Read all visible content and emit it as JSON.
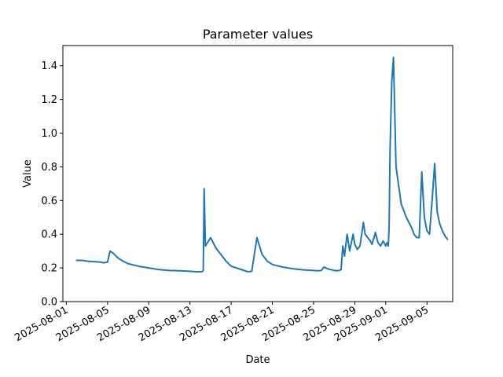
{
  "chart_data": {
    "type": "line",
    "title": "Parameter values",
    "xlabel": "Date",
    "ylabel": "Value",
    "x_ticks": [
      "2025-08-01",
      "2025-08-05",
      "2025-08-09",
      "2025-08-13",
      "2025-08-17",
      "2025-08-21",
      "2025-08-25",
      "2025-08-29",
      "2025-09-01",
      "2025-09-05"
    ],
    "y_ticks": [
      "0.0",
      "0.2",
      "0.4",
      "0.6",
      "0.8",
      "1.0",
      "1.2",
      "1.4"
    ],
    "xlim": [
      "2025-07-31T16:00",
      "2025-09-07T12:00"
    ],
    "ylim": [
      0.0,
      1.52
    ],
    "grid": false,
    "color": "#1f77b4",
    "series": [
      {
        "x": [
          "2025-08-02T00:00",
          "2025-08-02T12:00",
          "2025-08-03T00:00",
          "2025-08-03T12:00",
          "2025-08-04T00:00",
          "2025-08-04T06:00",
          "2025-08-04T12:00",
          "2025-08-04T16:00",
          "2025-08-04T20:00",
          "2025-08-05T00:00",
          "2025-08-05T06:00",
          "2025-08-05T12:00",
          "2025-08-06T00:00",
          "2025-08-06T12:00",
          "2025-08-07T00:00",
          "2025-08-08T00:00",
          "2025-08-09T00:00",
          "2025-08-10T00:00",
          "2025-08-11T00:00",
          "2025-08-12T00:00",
          "2025-08-13T00:00",
          "2025-08-13T12:00",
          "2025-08-14T00:00",
          "2025-08-14T03:00",
          "2025-08-14T04:00",
          "2025-08-14T06:00",
          "2025-08-14T07:00",
          "2025-08-14T09:00",
          "2025-08-14T12:00",
          "2025-08-15T00:00",
          "2025-08-15T12:00",
          "2025-08-16T00:00",
          "2025-08-16T12:00",
          "2025-08-17T00:00",
          "2025-08-17T12:00",
          "2025-08-18T00:00",
          "2025-08-18T12:00",
          "2025-08-18T15:00",
          "2025-08-18T18:00",
          "2025-08-19T00:00",
          "2025-08-19T12:00",
          "2025-08-20T00:00",
          "2025-08-20T12:00",
          "2025-08-21T00:00",
          "2025-08-22T00:00",
          "2025-08-23T00:00",
          "2025-08-24T00:00",
          "2025-08-25T00:00",
          "2025-08-25T12:00",
          "2025-08-25T18:00",
          "2025-08-26T00:00",
          "2025-08-26T12:00",
          "2025-08-27T00:00",
          "2025-08-27T06:00",
          "2025-08-27T12:00",
          "2025-08-27T16:00",
          "2025-08-27T20:00",
          "2025-08-28T00:00",
          "2025-08-28T06:00",
          "2025-08-28T12:00",
          "2025-08-28T20:00",
          "2025-08-29T00:00",
          "2025-08-29T06:00",
          "2025-08-29T12:00",
          "2025-08-29T20:00",
          "2025-08-30T00:00",
          "2025-08-30T12:00",
          "2025-08-30T16:00",
          "2025-08-31T00:00",
          "2025-08-31T06:00",
          "2025-08-31T12:00",
          "2025-08-31T18:00",
          "2025-09-01T00:00",
          "2025-09-01T03:00",
          "2025-09-01T06:00",
          "2025-09-01T08:00",
          "2025-09-01T10:00",
          "2025-09-01T14:00",
          "2025-09-01T18:00",
          "2025-09-02T00:00",
          "2025-09-02T12:00",
          "2025-09-03T00:00",
          "2025-09-03T12:00",
          "2025-09-03T18:00",
          "2025-09-04T00:00",
          "2025-09-04T06:00",
          "2025-09-04T12:00",
          "2025-09-04T18:00",
          "2025-09-05T00:00",
          "2025-09-05T06:00",
          "2025-09-05T12:00",
          "2025-09-05T18:00",
          "2025-09-06T00:00",
          "2025-09-06T06:00",
          "2025-09-06T12:00",
          "2025-09-06T18:00",
          "2025-09-07T00:00"
        ],
        "y": [
          0.245,
          0.245,
          0.24,
          0.238,
          0.236,
          0.235,
          0.232,
          0.23,
          0.233,
          0.235,
          0.3,
          0.29,
          0.26,
          0.24,
          0.225,
          0.21,
          0.2,
          0.19,
          0.185,
          0.183,
          0.18,
          0.178,
          0.177,
          0.178,
          0.178,
          0.18,
          0.19,
          0.67,
          0.33,
          0.38,
          0.32,
          0.28,
          0.24,
          0.21,
          0.2,
          0.19,
          0.18,
          0.178,
          0.178,
          0.18,
          0.38,
          0.28,
          0.24,
          0.22,
          0.205,
          0.195,
          0.188,
          0.185,
          0.183,
          0.185,
          0.205,
          0.192,
          0.185,
          0.183,
          0.185,
          0.19,
          0.33,
          0.27,
          0.4,
          0.3,
          0.4,
          0.34,
          0.31,
          0.33,
          0.47,
          0.4,
          0.36,
          0.34,
          0.41,
          0.35,
          0.33,
          0.36,
          0.33,
          0.35,
          0.33,
          0.45,
          0.89,
          1.3,
          1.45,
          0.8,
          0.58,
          0.5,
          0.44,
          0.4,
          0.38,
          0.38,
          0.77,
          0.5,
          0.42,
          0.4,
          0.6,
          0.82,
          0.53,
          0.46,
          0.42,
          0.39,
          0.37
        ]
      }
    ]
  }
}
